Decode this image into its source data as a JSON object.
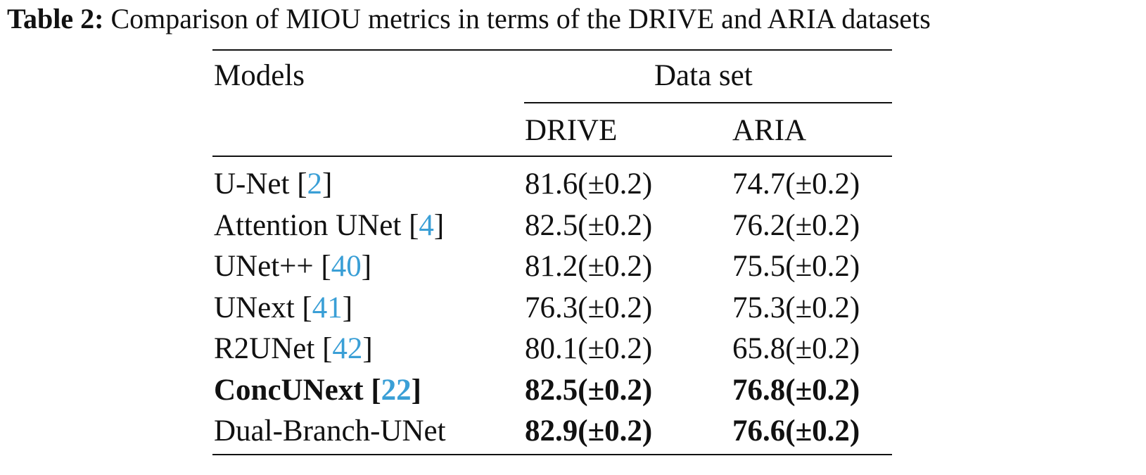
{
  "caption": {
    "label": "Table 2:",
    "text": "Comparison of MIOU metrics in terms of the DRIVE and ARIA datasets"
  },
  "table": {
    "header": {
      "models": "Models",
      "dataset_group": "Data set",
      "drive": "DRIVE",
      "aria": "ARIA"
    },
    "rows": [
      {
        "model": "U-Net",
        "cite": "2",
        "drive": "81.6(±0.2)",
        "aria": "74.7(±0.2)",
        "bold_model": false,
        "bold_drive": false,
        "bold_aria": false
      },
      {
        "model": "Attention UNet",
        "cite": "4",
        "drive": "82.5(±0.2)",
        "aria": "76.2(±0.2)",
        "bold_model": false,
        "bold_drive": false,
        "bold_aria": false
      },
      {
        "model": "UNet++",
        "cite": "40",
        "drive": "81.2(±0.2)",
        "aria": "75.5(±0.2)",
        "bold_model": false,
        "bold_drive": false,
        "bold_aria": false
      },
      {
        "model": "UNext",
        "cite": "41",
        "drive": "76.3(±0.2)",
        "aria": "75.3(±0.2)",
        "bold_model": false,
        "bold_drive": false,
        "bold_aria": false
      },
      {
        "model": "R2UNet",
        "cite": "42",
        "drive": "80.1(±0.2)",
        "aria": "65.8(±0.2)",
        "bold_model": false,
        "bold_drive": false,
        "bold_aria": false
      },
      {
        "model": "ConcUNext",
        "cite": "22",
        "drive": "82.5(±0.2)",
        "aria": "76.8(±0.2)",
        "bold_model": true,
        "bold_drive": true,
        "bold_aria": true
      },
      {
        "model": "Dual-Branch-UNet",
        "cite": "",
        "drive": "82.9(±0.2)",
        "aria": "76.6(±0.2)",
        "bold_model": false,
        "bold_drive": true,
        "bold_aria": true
      }
    ]
  }
}
